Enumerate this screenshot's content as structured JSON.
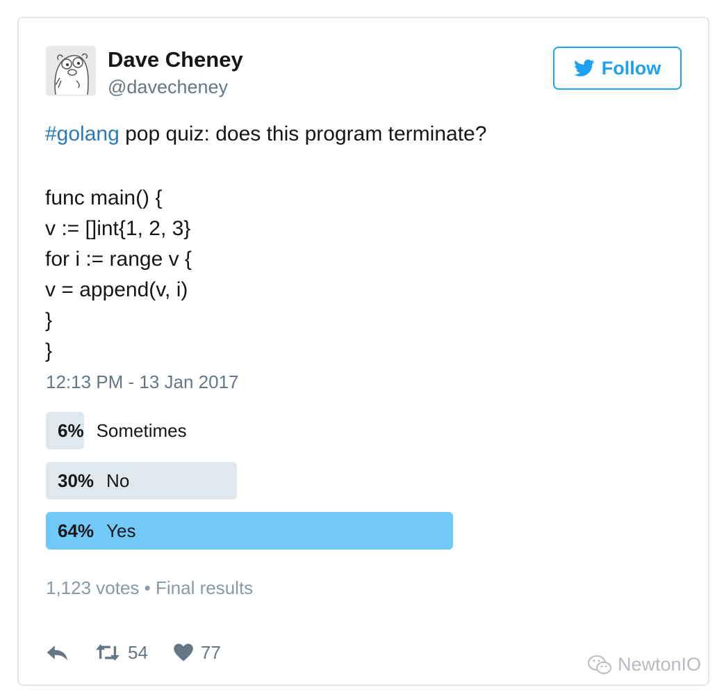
{
  "author": {
    "name": "Dave Cheney",
    "handle": "@davecheney"
  },
  "follow_button": {
    "label": "Follow",
    "icon": "twitter-bird-icon"
  },
  "tweet": {
    "hashtag": "#golang",
    "text": " pop quiz: does this program terminate?",
    "code_lines": [
      "func main() {",
      "v := []int{1, 2, 3}",
      "for i := range v {",
      "v = append(v, i)",
      "}",
      "}"
    ],
    "timestamp": "12:13 PM - 13 Jan 2017"
  },
  "poll": {
    "options": [
      {
        "percent": "6%",
        "label": "Sometimes",
        "fraction": 0.06,
        "winner": false
      },
      {
        "percent": "30%",
        "label": "No",
        "fraction": 0.3,
        "winner": false
      },
      {
        "percent": "64%",
        "label": "Yes",
        "fraction": 0.64,
        "winner": true
      }
    ],
    "votes": "1,123 votes",
    "separator": "•",
    "status": "Final results"
  },
  "actions": {
    "reply_icon": "reply-icon",
    "retweet_icon": "retweet-icon",
    "retweet_count": "54",
    "like_icon": "heart-icon",
    "like_count": "77"
  },
  "watermark": {
    "text": "NewtonIO",
    "icon": "wechat-icon"
  },
  "colors": {
    "accent": "#1da1f2",
    "hashtag": "#2b7bb9",
    "poll_bar": "#e1e8ed",
    "poll_winner": "#71c9f8"
  }
}
